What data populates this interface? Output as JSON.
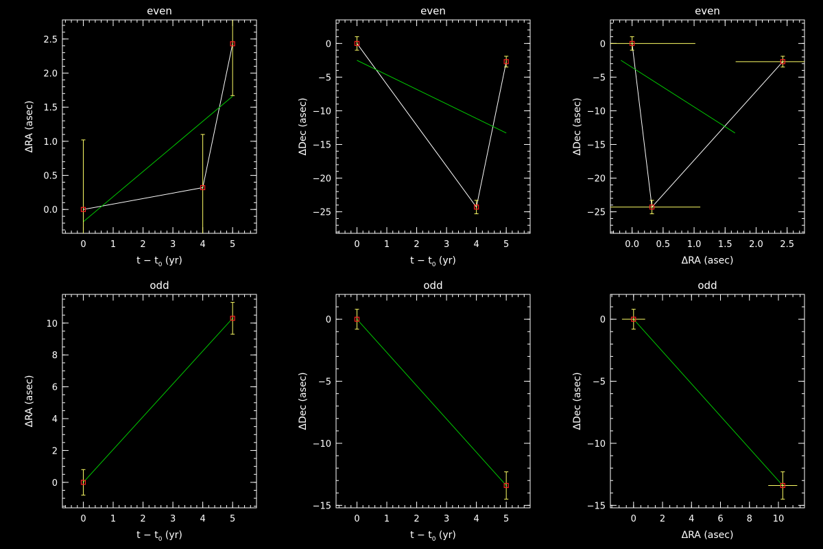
{
  "colors": {
    "background": "#000000",
    "axes": "#ffffff",
    "data_line": "#ffffff",
    "fit_line": "#00cc00",
    "error_bar": "#ffff66",
    "marker": "#ff2020"
  },
  "chart_data": [
    {
      "type": "scatter",
      "title": "even",
      "xlabel": "t − t",
      "xlabel_sub": "0",
      "xlabel_tail": " (yr)",
      "ylabel": "ΔRA (asec)",
      "xlim": [
        -0.7,
        5.8
      ],
      "ylim": [
        -0.35,
        2.78
      ],
      "xticks": [
        0,
        1,
        2,
        3,
        4,
        5
      ],
      "xticklabels": [
        "0",
        "1",
        "2",
        "3",
        "4",
        "5"
      ],
      "yticks": [
        0.0,
        0.5,
        1.0,
        1.5,
        2.0,
        2.5
      ],
      "yticklabels": [
        "0.0",
        "0.5",
        "1.0",
        "1.5",
        "2.0",
        "2.5"
      ],
      "xminor": 0.2,
      "yminor": 0.1,
      "series": [
        {
          "x": [
            0,
            4,
            5
          ],
          "y": [
            0.0,
            0.32,
            2.43
          ],
          "yerr": [
            1.02,
            0.78,
            0.76
          ],
          "xerr": [
            0,
            0,
            0
          ]
        }
      ],
      "fit": {
        "x": [
          0,
          5
        ],
        "y": [
          -0.18,
          1.66
        ]
      }
    },
    {
      "type": "scatter",
      "title": "even",
      "xlabel": "t − t",
      "xlabel_sub": "0",
      "xlabel_tail": " (yr)",
      "ylabel": "ΔDec (asec)",
      "xlim": [
        -0.7,
        5.8
      ],
      "ylim": [
        -28.2,
        3.5
      ],
      "xticks": [
        0,
        1,
        2,
        3,
        4,
        5
      ],
      "xticklabels": [
        "0",
        "1",
        "2",
        "3",
        "4",
        "5"
      ],
      "yticks": [
        0,
        -5,
        -10,
        -15,
        -20,
        -25
      ],
      "yticklabels": [
        "0",
        "−5",
        "−10",
        "−15",
        "−20",
        "−25"
      ],
      "xminor": 0.2,
      "yminor": 1,
      "series": [
        {
          "x": [
            0,
            4,
            5
          ],
          "y": [
            0.0,
            -24.3,
            -2.7
          ],
          "yerr": [
            1.0,
            1.0,
            0.8
          ],
          "xerr": [
            0,
            0,
            0
          ]
        }
      ],
      "fit": {
        "x": [
          0,
          5
        ],
        "y": [
          -2.5,
          -13.3
        ]
      }
    },
    {
      "type": "scatter",
      "title": "even",
      "xlabel": "ΔRA (asec)",
      "xlabel_sub": "",
      "xlabel_tail": "",
      "ylabel": "ΔDec (asec)",
      "xlim": [
        -0.35,
        2.78
      ],
      "ylim": [
        -28.2,
        3.5
      ],
      "xticks": [
        0.0,
        0.5,
        1.0,
        1.5,
        2.0,
        2.5
      ],
      "xticklabels": [
        "0.0",
        "0.5",
        "1.0",
        "1.5",
        "2.0",
        "2.5"
      ],
      "yticks": [
        0,
        -5,
        -10,
        -15,
        -20,
        -25
      ],
      "yticklabels": [
        "0",
        "−5",
        "−10",
        "−15",
        "−20",
        "−25"
      ],
      "xminor": 0.1,
      "yminor": 1,
      "series": [
        {
          "x": [
            0.0,
            0.32,
            2.43
          ],
          "y": [
            0.0,
            -24.3,
            -2.7
          ],
          "yerr": [
            1.0,
            1.0,
            0.8
          ],
          "xerr": [
            1.02,
            0.78,
            0.76
          ]
        }
      ],
      "fit": {
        "x": [
          -0.18,
          1.66
        ],
        "y": [
          -2.5,
          -13.3
        ]
      }
    },
    {
      "type": "scatter",
      "title": "odd",
      "xlabel": "t − t",
      "xlabel_sub": "0",
      "xlabel_tail": " (yr)",
      "ylabel": "ΔRA (asec)",
      "xlim": [
        -0.7,
        5.8
      ],
      "ylim": [
        -1.6,
        11.8
      ],
      "xticks": [
        0,
        1,
        2,
        3,
        4,
        5
      ],
      "xticklabels": [
        "0",
        "1",
        "2",
        "3",
        "4",
        "5"
      ],
      "yticks": [
        0,
        2,
        4,
        6,
        8,
        10
      ],
      "yticklabels": [
        "0",
        "2",
        "4",
        "6",
        "8",
        "10"
      ],
      "xminor": 0.2,
      "yminor": 0.5,
      "series": [
        {
          "x": [
            0,
            5
          ],
          "y": [
            0.0,
            10.3
          ],
          "yerr": [
            0.8,
            1.0
          ],
          "xerr": [
            0,
            0
          ]
        }
      ],
      "fit": {
        "x": [
          0,
          5
        ],
        "y": [
          0.0,
          10.3
        ]
      }
    },
    {
      "type": "scatter",
      "title": "odd",
      "xlabel": "t − t",
      "xlabel_sub": "0",
      "xlabel_tail": " (yr)",
      "ylabel": "ΔDec (asec)",
      "xlim": [
        -0.7,
        5.8
      ],
      "ylim": [
        -15.2,
        2.0
      ],
      "xticks": [
        0,
        1,
        2,
        3,
        4,
        5
      ],
      "xticklabels": [
        "0",
        "1",
        "2",
        "3",
        "4",
        "5"
      ],
      "yticks": [
        0,
        -5,
        -10,
        -15
      ],
      "yticklabels": [
        "0",
        "−5",
        "−10",
        "−15"
      ],
      "xminor": 0.2,
      "yminor": 1,
      "series": [
        {
          "x": [
            0,
            5
          ],
          "y": [
            0.0,
            -13.4
          ],
          "yerr": [
            0.8,
            1.1
          ],
          "xerr": [
            0,
            0
          ]
        }
      ],
      "fit": {
        "x": [
          0,
          5
        ],
        "y": [
          0.0,
          -13.4
        ]
      }
    },
    {
      "type": "scatter",
      "title": "odd",
      "xlabel": "ΔRA (asec)",
      "xlabel_sub": "",
      "xlabel_tail": "",
      "ylabel": "ΔDec (asec)",
      "xlim": [
        -1.6,
        11.8
      ],
      "ylim": [
        -15.2,
        2.0
      ],
      "xticks": [
        0,
        2,
        4,
        6,
        8,
        10
      ],
      "xticklabels": [
        "0",
        "2",
        "4",
        "6",
        "8",
        "10"
      ],
      "yticks": [
        0,
        -5,
        -10,
        -15
      ],
      "yticklabels": [
        "0",
        "−5",
        "−10",
        "−15"
      ],
      "xminor": 0.5,
      "yminor": 1,
      "series": [
        {
          "x": [
            0.0,
            10.3
          ],
          "y": [
            0.0,
            -13.4
          ],
          "yerr": [
            0.8,
            1.1
          ],
          "xerr": [
            0.8,
            1.0
          ]
        }
      ],
      "fit": {
        "x": [
          0.0,
          10.3
        ],
        "y": [
          0.0,
          -13.4
        ]
      }
    }
  ]
}
